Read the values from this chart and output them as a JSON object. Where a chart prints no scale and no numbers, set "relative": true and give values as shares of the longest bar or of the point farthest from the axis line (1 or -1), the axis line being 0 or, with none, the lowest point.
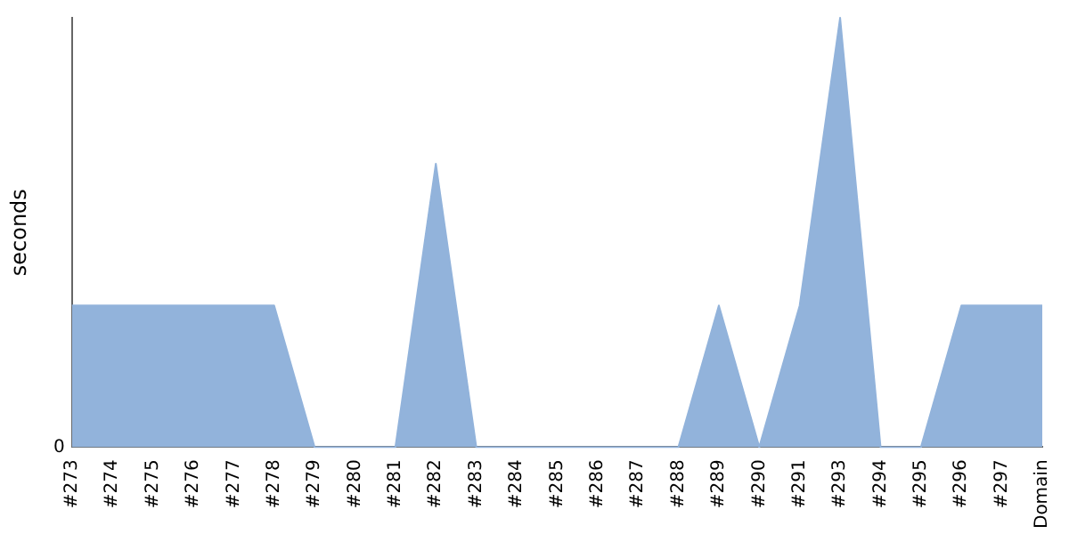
{
  "chart_data": {
    "type": "area",
    "relative": true,
    "ylabel": "seconds",
    "grid": false,
    "legend": false,
    "marker": "none",
    "categories": [
      "#273",
      "#274",
      "#275",
      "#276",
      "#277",
      "#278",
      "#279",
      "#280",
      "#281",
      "#282",
      "#283",
      "#284",
      "#285",
      "#286",
      "#287",
      "#288",
      "#289",
      "#290",
      "#291",
      "#293",
      "#294",
      "#295",
      "#296",
      "#297",
      "Domain"
    ],
    "series": [
      {
        "color": "#92b3db",
        "values": [
          0.33,
          0.33,
          0.33,
          0.33,
          0.33,
          0.33,
          0,
          0,
          0,
          0.66,
          0,
          0,
          0,
          0,
          0,
          0,
          0.33,
          0,
          0.33,
          1,
          0,
          0,
          0.33,
          0.33,
          0.33
        ]
      }
    ],
    "annotations": [
      "0"
    ]
  }
}
